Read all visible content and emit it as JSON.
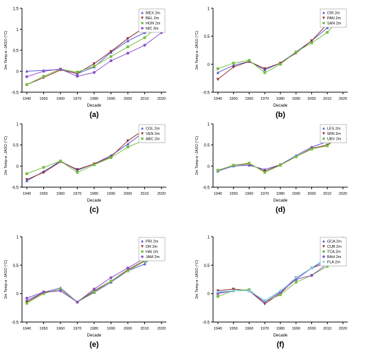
{
  "chart_data": [
    {
      "type": "line",
      "panel_label": "(a)",
      "xlabel": "Decade",
      "ylabel": "2m Temp-a -JASO (°C)",
      "categories": [
        "1940",
        "1950",
        "1960",
        "1970",
        "1980",
        "1990",
        "2000",
        "2010",
        "2020"
      ],
      "y_ticks": [
        "-0.5",
        "0",
        "0.5",
        "1",
        "1.5"
      ],
      "ylim": [
        -0.5,
        1.5
      ],
      "series": [
        {
          "name": "MEX 2m",
          "color": "#5a5ad6",
          "marker": "triangle",
          "values": [
            0.0,
            0.02,
            0.04,
            -0.06,
            0.1,
            0.45,
            0.72,
            0.92,
            1.18
          ]
        },
        {
          "name": "BEL 2m",
          "color": "#8b2d2d",
          "marker": "triangle-down",
          "values": [
            -0.32,
            -0.15,
            0.03,
            -0.05,
            0.18,
            0.47,
            0.78,
            1.05,
            1.4
          ]
        },
        {
          "name": "HON 2m",
          "color": "#76c043",
          "marker": "square",
          "values": [
            -0.32,
            -0.12,
            0.05,
            -0.02,
            0.12,
            0.35,
            0.58,
            0.8,
            1.12
          ]
        },
        {
          "name": "NIC 2m",
          "color": "#8a4fc9",
          "marker": "circle",
          "values": [
            -0.13,
            0.0,
            0.05,
            -0.12,
            -0.03,
            0.25,
            0.43,
            0.62,
            0.92
          ]
        }
      ],
      "legend_position": "top-right"
    },
    {
      "type": "line",
      "panel_label": "(b)",
      "xlabel": "Decade",
      "ylabel": "2m Temp-a -JASO (°C)",
      "categories": [
        "1940",
        "1950",
        "1960",
        "1970",
        "1980",
        "1990",
        "2000",
        "2010",
        "2020"
      ],
      "y_ticks": [
        "-0.5",
        "0",
        "0.5",
        "1"
      ],
      "ylim": [
        -0.5,
        1.0
      ],
      "series": [
        {
          "name": "CRI 2m",
          "color": "#5a5ad6",
          "marker": "triangle",
          "values": [
            -0.15,
            -0.02,
            0.05,
            -0.1,
            0.02,
            0.22,
            0.42,
            0.65,
            0.87
          ]
        },
        {
          "name": "PAN 2m",
          "color": "#8b2d2d",
          "marker": "triangle-down",
          "values": [
            -0.27,
            -0.05,
            0.05,
            -0.08,
            0.02,
            0.2,
            0.42,
            0.72,
            0.88
          ]
        },
        {
          "name": "SAN 2m",
          "color": "#76c043",
          "marker": "square",
          "values": [
            -0.08,
            0.02,
            0.07,
            -0.15,
            0.0,
            0.22,
            0.38,
            0.57,
            0.87
          ]
        }
      ],
      "legend_position": "top-right"
    },
    {
      "type": "line",
      "panel_label": "(c)",
      "xlabel": "Decade",
      "ylabel": "2m Temp-a -JASO (°C)",
      "categories": [
        "1940",
        "1950",
        "1960",
        "1970",
        "1980",
        "1990",
        "2000",
        "2010",
        "2020"
      ],
      "y_ticks": [
        "-0.5",
        "0",
        "0.5",
        "1"
      ],
      "ylim": [
        -0.5,
        1.0
      ],
      "series": [
        {
          "name": "COL 2m",
          "color": "#5a5ad6",
          "marker": "triangle",
          "values": [
            -0.35,
            -0.13,
            0.12,
            -0.1,
            0.05,
            0.25,
            0.52,
            0.82,
            0.9
          ]
        },
        {
          "name": "VEN 2m",
          "color": "#8b2d2d",
          "marker": "triangle-down",
          "values": [
            -0.32,
            -0.15,
            0.1,
            -0.08,
            0.05,
            0.22,
            0.6,
            0.87,
            0.95
          ]
        },
        {
          "name": "ABC 2m",
          "color": "#76c043",
          "marker": "square",
          "values": [
            -0.18,
            -0.03,
            0.12,
            -0.15,
            0.03,
            0.2,
            0.45,
            0.62,
            0.8
          ]
        }
      ],
      "legend_position": "top-right"
    },
    {
      "type": "line",
      "panel_label": "(d)",
      "xlabel": "Decade",
      "ylabel": "2m Temp-a -JASO (°C)",
      "categories": [
        "1940",
        "1950",
        "1960",
        "1970",
        "1980",
        "1990",
        "2000",
        "2010",
        "2020"
      ],
      "y_ticks": [
        "-0.5",
        "0",
        "0.5",
        "1"
      ],
      "ylim": [
        -0.5,
        1.0
      ],
      "series": [
        {
          "name": "LES 2m",
          "color": "#5a5ad6",
          "marker": "triangle",
          "values": [
            -0.12,
            0.0,
            0.02,
            -0.08,
            0.03,
            0.25,
            0.45,
            0.58,
            0.87
          ]
        },
        {
          "name": "WIN 2m",
          "color": "#8b2d2d",
          "marker": "triangle-down",
          "values": [
            -0.1,
            0.02,
            0.05,
            -0.12,
            0.03,
            0.22,
            0.42,
            0.5,
            0.78
          ]
        },
        {
          "name": "UBV 2m",
          "color": "#76c043",
          "marker": "square",
          "values": [
            -0.1,
            0.02,
            0.07,
            -0.15,
            0.02,
            0.22,
            0.4,
            0.48,
            0.78
          ]
        }
      ],
      "legend_position": "top-right"
    },
    {
      "type": "line",
      "panel_label": "(e)",
      "xlabel": "Decade",
      "ylabel": "2m Temp-a -JASO (°C)",
      "categories": [
        "1940",
        "1950",
        "1960",
        "1970",
        "1980",
        "1990",
        "2000",
        "2010",
        "2020"
      ],
      "y_ticks": [
        "-0.5",
        "0",
        "0.5",
        "1"
      ],
      "ylim": [
        -0.5,
        1.0
      ],
      "series": [
        {
          "name": "PRI 2m",
          "color": "#5a5ad6",
          "marker": "triangle",
          "values": [
            -0.12,
            0.02,
            0.1,
            -0.15,
            0.02,
            0.2,
            0.4,
            0.52,
            0.82
          ]
        },
        {
          "name": "DR 2m",
          "color": "#8b2d2d",
          "marker": "triangle-down",
          "values": [
            -0.15,
            0.02,
            0.05,
            -0.15,
            0.05,
            0.22,
            0.42,
            0.58,
            0.88
          ]
        },
        {
          "name": "HAI 2m",
          "color": "#76c043",
          "marker": "square",
          "values": [
            -0.17,
            0.0,
            0.08,
            -0.15,
            0.03,
            0.22,
            0.4,
            0.57,
            0.88
          ]
        },
        {
          "name": "JAM 2m",
          "color": "#8a4fc9",
          "marker": "circle",
          "values": [
            -0.08,
            0.03,
            0.05,
            -0.15,
            0.08,
            0.28,
            0.45,
            0.62,
            0.95
          ]
        }
      ],
      "legend_position": "top-right"
    },
    {
      "type": "line",
      "panel_label": "(f)",
      "xlabel": "Decade",
      "ylabel": "2m Temp-a -JASO (°C)",
      "categories": [
        "1940",
        "1950",
        "1960",
        "1970",
        "1980",
        "1990",
        "2000",
        "2010",
        "2020"
      ],
      "y_ticks": [
        "-0.5",
        "0",
        "0.5",
        "1"
      ],
      "ylim": [
        -0.5,
        1.0
      ],
      "series": [
        {
          "name": "GCA 2m",
          "color": "#5a5ad6",
          "marker": "triangle",
          "values": [
            0.02,
            0.05,
            0.05,
            -0.15,
            0.02,
            0.25,
            0.45,
            0.6,
            0.92
          ]
        },
        {
          "name": "CUB 2m",
          "color": "#8b2d2d",
          "marker": "triangle-down",
          "values": [
            0.05,
            0.08,
            0.05,
            -0.18,
            0.0,
            0.28,
            0.45,
            0.55,
            0.88
          ]
        },
        {
          "name": "TCA 2m",
          "color": "#76c043",
          "marker": "square",
          "values": [
            -0.05,
            0.05,
            0.07,
            -0.15,
            -0.02,
            0.2,
            0.32,
            0.48,
            0.78
          ]
        },
        {
          "name": "BAH 2m",
          "color": "#8a4fc9",
          "marker": "circle",
          "values": [
            0.0,
            0.05,
            0.05,
            -0.15,
            0.03,
            0.25,
            0.32,
            0.52,
            0.85
          ]
        },
        {
          "name": "FLA 2m",
          "color": "#7fd3e8",
          "marker": "diamond",
          "values": [
            0.03,
            0.05,
            0.05,
            -0.12,
            0.05,
            0.28,
            0.45,
            0.65,
            0.98
          ]
        }
      ],
      "legend_position": "top-right"
    }
  ]
}
